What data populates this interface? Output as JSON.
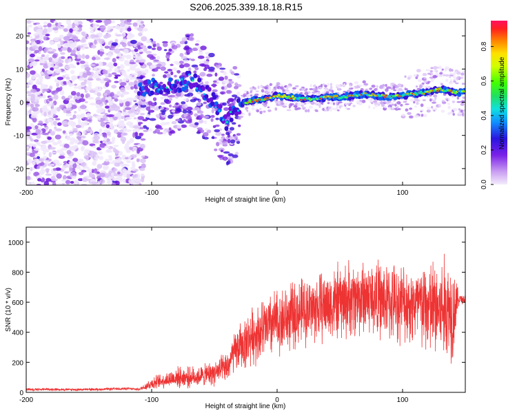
{
  "title": "S206.2025.339.18.18.R15",
  "chart_data": [
    {
      "type": "heatmap",
      "title": "S206.2025.339.18.18.R15",
      "xlabel": "Height of straight line (km)",
      "ylabel": "Frequency (Hz)",
      "xlim": [
        -200,
        150
      ],
      "ylim": [
        -25,
        25
      ],
      "xticks": [
        -200,
        -100,
        0,
        100
      ],
      "yticks": [
        -20,
        -10,
        0,
        10,
        20
      ],
      "ridge": {
        "description_points_x": [
          -110,
          -100,
          -90,
          -80,
          -70,
          -60,
          -50,
          -45,
          -40,
          -35,
          -30,
          -25,
          -20,
          -10,
          0,
          10,
          20,
          30,
          40,
          50,
          60,
          70,
          80,
          90,
          100,
          110,
          120,
          130,
          140,
          150
        ],
        "description_points_y": [
          4,
          5,
          4,
          5,
          7,
          4,
          0,
          -3,
          -6,
          -3,
          -1,
          0,
          0.5,
          1,
          2,
          1.5,
          1,
          1,
          1.5,
          1.5,
          2,
          2.5,
          2,
          1.5,
          2,
          2.5,
          3,
          4,
          3,
          3
        ]
      },
      "colorbar": {
        "label": "Normalized spectral amplitude",
        "ticks": [
          0.0,
          0.2,
          0.4,
          0.6,
          0.8
        ],
        "range": [
          0,
          0.95
        ]
      }
    },
    {
      "type": "line",
      "xlabel": "Height of straight line (km)",
      "ylabel": "SNR (10 * v/v)",
      "xlim": [
        -200,
        150
      ],
      "ylim": [
        0,
        1100
      ],
      "xticks": [
        -200,
        -100,
        0,
        100
      ],
      "yticks": [
        0,
        200,
        400,
        600,
        800,
        1000
      ],
      "color": "#ee3333",
      "series": [
        {
          "name": "SNR",
          "x": [
            -200,
            -180,
            -160,
            -140,
            -120,
            -110,
            -105,
            -100,
            -90,
            -80,
            -70,
            -60,
            -50,
            -40,
            -35,
            -30,
            -25,
            -20,
            -15,
            -10,
            -5,
            0,
            10,
            20,
            30,
            40,
            50,
            60,
            70,
            80,
            90,
            100,
            110,
            120,
            130,
            135,
            140,
            145,
            150
          ],
          "y": [
            20,
            20,
            18,
            20,
            25,
            20,
            40,
            60,
            80,
            100,
            100,
            110,
            130,
            160,
            250,
            300,
            330,
            380,
            400,
            420,
            450,
            470,
            500,
            540,
            560,
            580,
            600,
            620,
            640,
            620,
            600,
            600,
            580,
            560,
            550,
            560,
            560,
            620,
            620
          ],
          "amp": [
            10,
            10,
            10,
            10,
            10,
            10,
            30,
            50,
            60,
            80,
            80,
            80,
            100,
            120,
            150,
            180,
            200,
            220,
            230,
            250,
            260,
            260,
            260,
            260,
            270,
            280,
            300,
            300,
            300,
            300,
            300,
            300,
            320,
            380,
            420,
            420,
            420,
            40,
            40
          ]
        }
      ]
    }
  ]
}
